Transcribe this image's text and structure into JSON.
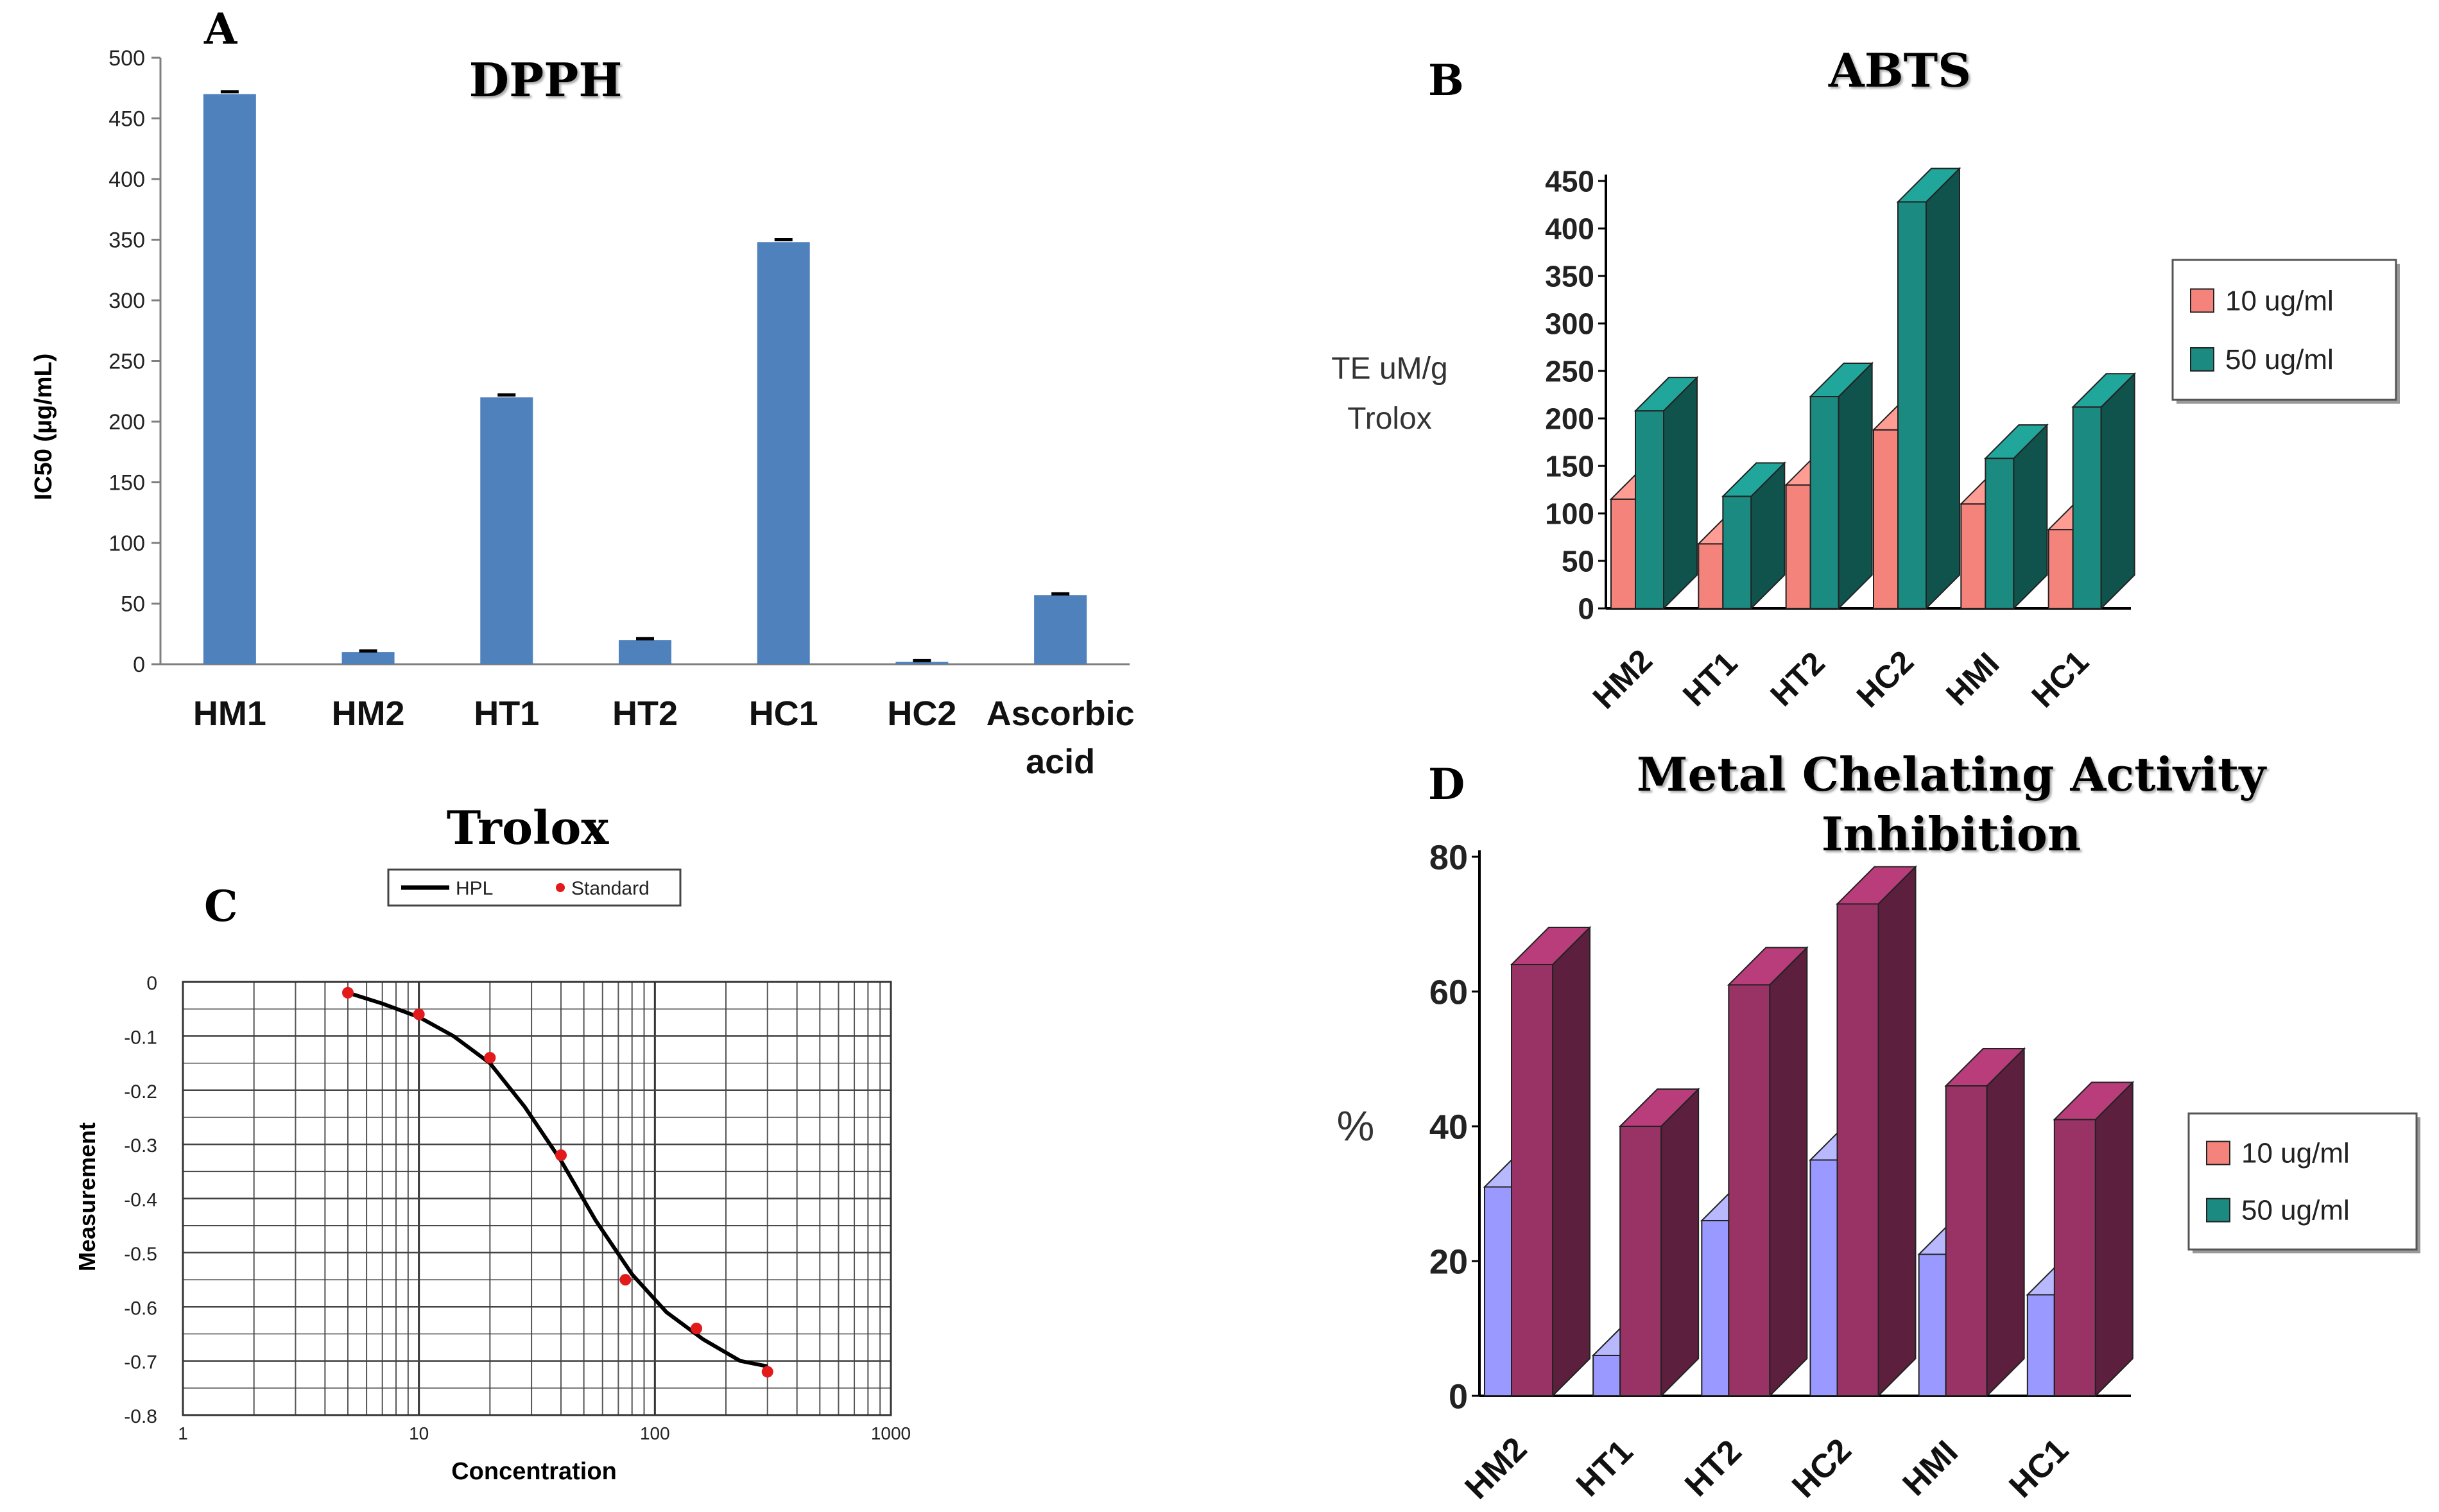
{
  "chart_data": [
    {
      "panel": "A",
      "type": "bar",
      "title": "DPPH",
      "ylabel": "IC50 (µg/mL)",
      "xlabel": "",
      "ylim": [
        0,
        500
      ],
      "yticks": [
        0,
        50,
        100,
        150,
        200,
        250,
        300,
        350,
        400,
        450,
        500
      ],
      "categories": [
        "HM1",
        "HM2",
        "HT1",
        "HT2",
        "HC1",
        "HC2",
        "Ascorbic acid"
      ],
      "category_lines": [
        [
          "HM1"
        ],
        [
          "HM2"
        ],
        [
          "HT1"
        ],
        [
          "HT2"
        ],
        [
          "HC1"
        ],
        [
          "HC2"
        ],
        [
          "Ascorbic",
          "acid"
        ]
      ],
      "values": [
        470,
        10,
        220,
        20,
        348,
        2,
        57
      ],
      "errors": [
        2,
        1,
        2,
        1,
        2,
        1,
        1
      ],
      "color": "#4f81bd"
    },
    {
      "panel": "B",
      "type": "bar",
      "title": "ABTS",
      "ylabel": "TE uM/g Trolox",
      "ylabel_lines": [
        "TE uM/g",
        "Trolox"
      ],
      "ylim": [
        0,
        450
      ],
      "yticks": [
        0,
        50,
        100,
        150,
        200,
        250,
        300,
        350,
        400,
        450
      ],
      "categories": [
        "HM2",
        "HT1",
        "HT2",
        "HC2",
        "HMI",
        "HC1"
      ],
      "series": [
        {
          "name": "10 ug/ml",
          "values": [
            115,
            68,
            130,
            188,
            110,
            83
          ],
          "color": "#f4837c"
        },
        {
          "name": "50 ug/ml",
          "values": [
            208,
            118,
            223,
            428,
            158,
            212
          ],
          "color": "#1b8a80"
        }
      ],
      "legend": "right"
    },
    {
      "panel": "C",
      "type": "line",
      "title": "Trolox",
      "xlabel": "Concentration",
      "ylabel": "Measurement",
      "xscale": "log",
      "xlim": [
        1,
        1000
      ],
      "ylim": [
        -0.8,
        0
      ],
      "xtick_labels": [
        "1",
        "10",
        "100",
        "1000"
      ],
      "yticks": [
        0,
        -0.1,
        -0.2,
        -0.3,
        -0.4,
        -0.5,
        -0.6,
        -0.7,
        -0.8
      ],
      "ytick_labels": [
        "0",
        "-0.1",
        "-0.2",
        "-0.3",
        "-0.4",
        "-0.5",
        "-0.6",
        "-0.7",
        "-0.8"
      ],
      "series": [
        {
          "name": "HPL",
          "kind": "line",
          "color": "#000000",
          "x": [
            5,
            7,
            10,
            14,
            20,
            28,
            40,
            56,
            80,
            112,
            160,
            230,
            300
          ],
          "y": [
            -0.02,
            -0.04,
            -0.065,
            -0.1,
            -0.15,
            -0.23,
            -0.33,
            -0.44,
            -0.54,
            -0.61,
            -0.66,
            -0.7,
            -0.71
          ]
        },
        {
          "name": "Standard",
          "kind": "scatter",
          "color": "#e31a1c",
          "x": [
            5,
            10,
            20,
            40,
            75,
            150,
            300
          ],
          "y": [
            -0.02,
            -0.06,
            -0.14,
            -0.32,
            -0.55,
            -0.64,
            -0.72
          ]
        }
      ],
      "legend": "top"
    },
    {
      "panel": "D",
      "type": "bar",
      "title": "Metal Chelating Activity Inhibition",
      "title_lines": [
        "Metal Chelating Activity",
        "Inhibition"
      ],
      "ylabel": "%",
      "ylim": [
        0,
        80
      ],
      "yticks": [
        0,
        20,
        40,
        60,
        80
      ],
      "categories": [
        "HM2",
        "HT1",
        "HT2",
        "HC2",
        "HMI",
        "HC1"
      ],
      "series": [
        {
          "name": "10 ug/ml",
          "values": [
            31,
            6,
            26,
            35,
            21,
            15
          ],
          "color": "#9999ff"
        },
        {
          "name": "50 ug/ml",
          "values": [
            64,
            40,
            61,
            73,
            46,
            41
          ],
          "color": "#993366"
        }
      ],
      "legend_colors": [
        "#f4837c",
        "#1b8a80"
      ],
      "legend": "right"
    }
  ],
  "panel_letters": [
    "A",
    "B",
    "C",
    "D"
  ]
}
